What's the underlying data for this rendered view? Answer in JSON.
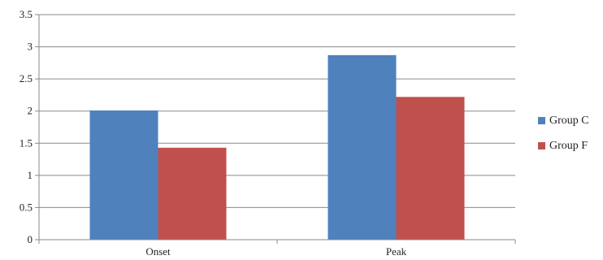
{
  "chart_data": {
    "type": "bar",
    "title": "",
    "xlabel": "",
    "ylabel": "",
    "categories": [
      "Onset",
      "Peak"
    ],
    "series": [
      {
        "name": "Group C",
        "color": "#4F81BD",
        "values": [
          2.01,
          2.87
        ]
      },
      {
        "name": "Group F",
        "color": "#C0504D",
        "values": [
          1.43,
          2.22
        ]
      }
    ],
    "ylim": [
      0,
      3.5
    ],
    "yticks": [
      "0",
      "0.5",
      "1",
      "1.5",
      "2",
      "2.5",
      "3",
      "3.5"
    ],
    "grid": true,
    "legend_position": "right"
  }
}
